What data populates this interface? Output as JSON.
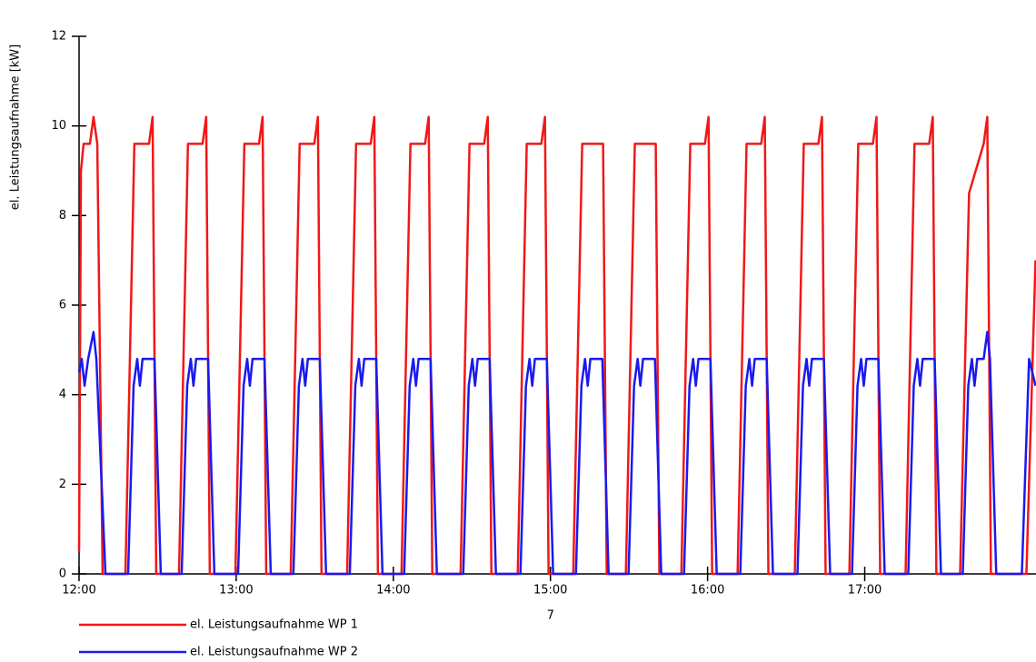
{
  "chart_data": {
    "type": "line",
    "ylabel": "el. Leistungsaufnahme [kW]",
    "x_annotation": "7",
    "xlim": [
      12,
      18.09
    ],
    "xticks": [
      {
        "value": 12,
        "label": "12:00"
      },
      {
        "value": 13,
        "label": "13:00"
      },
      {
        "value": 14,
        "label": "14:00"
      },
      {
        "value": 15,
        "label": "15:00"
      },
      {
        "value": 16,
        "label": "16:00"
      },
      {
        "value": 17,
        "label": "17:00"
      }
    ],
    "ylim": [
      0,
      12
    ],
    "yticks": [
      0,
      2,
      4,
      6,
      8,
      10,
      12
    ],
    "grid": false,
    "legend": "bottom-left",
    "series": [
      {
        "name": "el. Leistungsaufnahme WP 1",
        "color": "#f01818",
        "x": [
          12.0,
          12.012,
          12.029,
          12.069,
          12.092,
          12.116,
          12.15,
          12.295,
          12.352,
          12.445,
          12.468,
          12.491,
          12.636,
          12.693,
          12.786,
          12.809,
          12.832,
          12.995,
          13.052,
          13.145,
          13.168,
          13.191,
          13.347,
          13.404,
          13.497,
          13.52,
          13.543,
          13.706,
          13.763,
          13.856,
          13.879,
          13.902,
          14.052,
          14.109,
          14.202,
          14.225,
          14.248,
          14.428,
          14.485,
          14.578,
          14.601,
          14.624,
          14.792,
          14.849,
          14.942,
          14.965,
          14.988,
          15.145,
          15.202,
          15.335,
          15.358,
          15.48,
          15.537,
          15.67,
          15.693,
          15.833,
          15.89,
          15.983,
          16.006,
          16.029,
          16.191,
          16.248,
          16.341,
          16.364,
          16.387,
          16.555,
          16.612,
          16.705,
          16.728,
          16.751,
          16.902,
          16.959,
          17.052,
          17.075,
          17.098,
          17.26,
          17.317,
          17.41,
          17.433,
          17.456,
          17.607,
          17.664,
          17.757,
          17.78,
          17.803,
          18.029,
          18.087
        ],
        "values": [
          0.5,
          9,
          9.6,
          9.6,
          10.2,
          9.6,
          0,
          0,
          9.6,
          9.6,
          10.2,
          0,
          0,
          9.6,
          9.6,
          10.2,
          0,
          0,
          9.6,
          9.6,
          10.2,
          0,
          0,
          9.6,
          9.6,
          10.2,
          0,
          0,
          9.6,
          9.6,
          10.2,
          0,
          0,
          9.6,
          9.6,
          10.2,
          0,
          0,
          9.6,
          9.6,
          10.2,
          0,
          0,
          9.6,
          9.6,
          10.2,
          0,
          0,
          9.6,
          9.6,
          0,
          0,
          9.6,
          9.6,
          0,
          0,
          9.6,
          9.6,
          10.2,
          0,
          0,
          9.6,
          9.6,
          10.2,
          0,
          0,
          9.6,
          9.6,
          10.2,
          0,
          0,
          9.6,
          9.6,
          10.2,
          0,
          0,
          9.6,
          9.6,
          10.2,
          0,
          0,
          8.5,
          9.6,
          10.2,
          0,
          0,
          7
        ]
      },
      {
        "name": "el. Leistungsaufnahme WP 2",
        "color": "#1a1aee",
        "x": [
          12.0,
          12.017,
          12.035,
          12.058,
          12.092,
          12.11,
          12.168,
          12.312,
          12.347,
          12.37,
          12.387,
          12.404,
          12.48,
          12.52,
          12.653,
          12.688,
          12.711,
          12.728,
          12.745,
          12.821,
          12.861,
          13.012,
          13.047,
          13.07,
          13.087,
          13.104,
          13.18,
          13.22,
          13.364,
          13.399,
          13.422,
          13.439,
          13.456,
          13.532,
          13.572,
          13.723,
          13.758,
          13.781,
          13.798,
          13.815,
          13.891,
          13.931,
          14.069,
          14.104,
          14.127,
          14.144,
          14.161,
          14.237,
          14.277,
          14.445,
          14.48,
          14.503,
          14.52,
          14.537,
          14.613,
          14.653,
          14.809,
          14.844,
          14.867,
          14.884,
          14.901,
          14.977,
          15.017,
          15.162,
          15.197,
          15.22,
          15.237,
          15.254,
          15.33,
          15.37,
          15.497,
          15.532,
          15.555,
          15.572,
          15.589,
          15.665,
          15.705,
          15.85,
          15.885,
          15.908,
          15.925,
          15.942,
          16.018,
          16.058,
          16.208,
          16.243,
          16.266,
          16.283,
          16.3,
          16.376,
          16.416,
          16.572,
          16.607,
          16.63,
          16.647,
          16.664,
          16.74,
          16.78,
          16.919,
          16.954,
          16.977,
          16.994,
          17.011,
          17.087,
          17.127,
          17.277,
          17.312,
          17.335,
          17.352,
          17.369,
          17.445,
          17.485,
          17.624,
          17.659,
          17.682,
          17.699,
          17.716,
          17.757,
          17.78,
          17.797,
          17.837,
          18.0,
          18.046,
          18.087
        ],
        "values": [
          4.5,
          4.8,
          4.2,
          4.8,
          5.4,
          4.8,
          0,
          0,
          4.2,
          4.8,
          4.2,
          4.8,
          4.8,
          0,
          0,
          4.2,
          4.8,
          4.2,
          4.8,
          4.8,
          0,
          0,
          4.2,
          4.8,
          4.2,
          4.8,
          4.8,
          0,
          0,
          4.2,
          4.8,
          4.2,
          4.8,
          4.8,
          0,
          0,
          4.2,
          4.8,
          4.2,
          4.8,
          4.8,
          0,
          0,
          4.2,
          4.8,
          4.2,
          4.8,
          4.8,
          0,
          0,
          4.2,
          4.8,
          4.2,
          4.8,
          4.8,
          0,
          0,
          4.2,
          4.8,
          4.2,
          4.8,
          4.8,
          0,
          0,
          4.2,
          4.8,
          4.2,
          4.8,
          4.8,
          0,
          0,
          4.2,
          4.8,
          4.2,
          4.8,
          4.8,
          0,
          0,
          4.2,
          4.8,
          4.2,
          4.8,
          4.8,
          0,
          0,
          4.2,
          4.8,
          4.2,
          4.8,
          4.8,
          0,
          0,
          4.2,
          4.8,
          4.2,
          4.8,
          4.8,
          0,
          0,
          4.2,
          4.8,
          4.2,
          4.8,
          4.8,
          0,
          0,
          4.2,
          4.8,
          4.2,
          4.8,
          4.8,
          0,
          0,
          4.2,
          4.8,
          4.2,
          4.8,
          4.8,
          5.4,
          4.8,
          0,
          0,
          4.8,
          4.2
        ]
      }
    ]
  }
}
